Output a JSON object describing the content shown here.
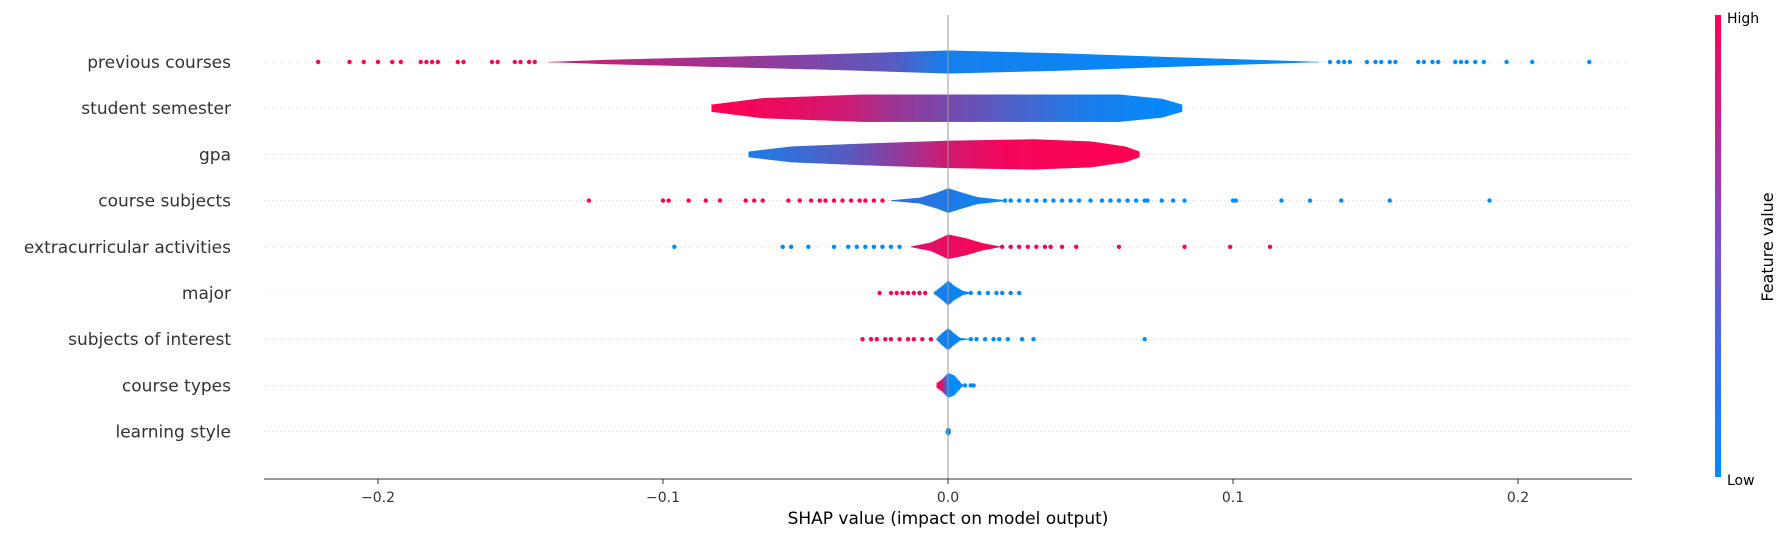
{
  "chart_data": {
    "type": "violin",
    "xlabel": "SHAP value (impact on model output)",
    "xlim": [
      -0.24,
      0.24
    ],
    "xticks": [
      -0.2,
      -0.1,
      0.0,
      0.1,
      0.2
    ],
    "xtick_labels": [
      "−0.2",
      "−0.1",
      "0.0",
      "0.1",
      "0.2"
    ],
    "colorbar": {
      "label": "Feature value",
      "high": "High",
      "low": "Low",
      "high_color": "#ff0052",
      "low_color": "#008bfb"
    },
    "features": [
      {
        "name": "previous courses",
        "range": [
          -0.14,
          0.13
        ],
        "density": [
          [
            -0.14,
            0.002
          ],
          [
            -0.12,
            0.06
          ],
          [
            -0.08,
            0.14
          ],
          [
            -0.04,
            0.22
          ],
          [
            0.0,
            0.32
          ],
          [
            0.04,
            0.24
          ],
          [
            0.08,
            0.13
          ],
          [
            0.12,
            0.03
          ],
          [
            0.13,
            0.002
          ]
        ],
        "color": [
          [
            -0.14,
            0.8
          ],
          [
            -0.07,
            0.6
          ],
          [
            -0.02,
            0.35
          ],
          [
            0.0,
            0.08
          ],
          [
            0.13,
            0.0
          ]
        ],
        "outliers": [
          [
            -0.221,
            1
          ],
          [
            -0.21,
            1
          ],
          [
            -0.205,
            1
          ],
          [
            -0.2,
            1
          ],
          [
            -0.195,
            1
          ],
          [
            -0.192,
            1
          ],
          [
            -0.185,
            1
          ],
          [
            -0.183,
            1
          ],
          [
            -0.181,
            1
          ],
          [
            -0.179,
            1
          ],
          [
            -0.172,
            1
          ],
          [
            -0.17,
            1
          ],
          [
            -0.16,
            1
          ],
          [
            -0.158,
            1
          ],
          [
            -0.152,
            1
          ],
          [
            -0.15,
            1
          ],
          [
            -0.147,
            1
          ],
          [
            -0.145,
            1
          ],
          [
            0.134,
            0
          ],
          [
            0.137,
            0
          ],
          [
            0.139,
            0
          ],
          [
            0.141,
            0
          ],
          [
            0.147,
            0
          ],
          [
            0.15,
            0
          ],
          [
            0.152,
            0
          ],
          [
            0.155,
            0
          ],
          [
            0.157,
            0
          ],
          [
            0.165,
            0
          ],
          [
            0.167,
            0
          ],
          [
            0.17,
            0
          ],
          [
            0.172,
            0
          ],
          [
            0.178,
            0
          ],
          [
            0.18,
            0
          ],
          [
            0.182,
            0
          ],
          [
            0.185,
            0
          ],
          [
            0.188,
            0
          ],
          [
            0.196,
            0
          ],
          [
            0.205,
            0
          ],
          [
            0.225,
            0
          ]
        ]
      },
      {
        "name": "student semester",
        "range": [
          -0.083,
          0.082
        ],
        "density": [
          [
            -0.083,
            0.1
          ],
          [
            -0.065,
            0.28
          ],
          [
            -0.03,
            0.38
          ],
          [
            0.0,
            0.38
          ],
          [
            0.04,
            0.38
          ],
          [
            0.06,
            0.38
          ],
          [
            0.075,
            0.26
          ],
          [
            0.082,
            0.1
          ]
        ],
        "color": [
          [
            -0.083,
            1.0
          ],
          [
            -0.055,
            0.9
          ],
          [
            -0.035,
            0.8
          ],
          [
            -0.02,
            0.62
          ],
          [
            -0.005,
            0.5
          ],
          [
            0.01,
            0.4
          ],
          [
            0.03,
            0.25
          ],
          [
            0.05,
            0.1
          ],
          [
            0.082,
            0.0
          ]
        ],
        "outliers": []
      },
      {
        "name": "gpa",
        "range": [
          -0.07,
          0.067
        ],
        "density": [
          [
            -0.07,
            0.08
          ],
          [
            -0.055,
            0.22
          ],
          [
            -0.03,
            0.3
          ],
          [
            0.0,
            0.38
          ],
          [
            0.03,
            0.42
          ],
          [
            0.05,
            0.36
          ],
          [
            0.062,
            0.22
          ],
          [
            0.067,
            0.08
          ]
        ],
        "color": [
          [
            -0.07,
            0.1
          ],
          [
            -0.055,
            0.2
          ],
          [
            -0.035,
            0.35
          ],
          [
            -0.015,
            0.6
          ],
          [
            0.0,
            0.82
          ],
          [
            0.02,
            0.95
          ],
          [
            0.067,
            1.0
          ]
        ],
        "outliers": []
      },
      {
        "name": "course subjects",
        "range": [
          -0.02,
          0.02
        ],
        "density": [
          [
            -0.02,
            0.01
          ],
          [
            -0.01,
            0.08
          ],
          [
            -0.004,
            0.22
          ],
          [
            0.0,
            0.34
          ],
          [
            0.004,
            0.24
          ],
          [
            0.01,
            0.1
          ],
          [
            0.02,
            0.01
          ]
        ],
        "color": [
          [
            -0.02,
            0.25
          ],
          [
            0.02,
            0.0
          ]
        ],
        "outliers": [
          [
            -0.126,
            1
          ],
          [
            -0.1,
            1
          ],
          [
            -0.098,
            1
          ],
          [
            -0.091,
            1
          ],
          [
            -0.085,
            1
          ],
          [
            -0.08,
            1
          ],
          [
            -0.071,
            1
          ],
          [
            -0.068,
            1
          ],
          [
            -0.065,
            1
          ],
          [
            -0.056,
            1
          ],
          [
            -0.052,
            1
          ],
          [
            -0.048,
            1
          ],
          [
            -0.045,
            1
          ],
          [
            -0.043,
            1
          ],
          [
            -0.04,
            1
          ],
          [
            -0.037,
            1
          ],
          [
            -0.034,
            1
          ],
          [
            -0.031,
            1
          ],
          [
            -0.029,
            1
          ],
          [
            -0.026,
            1
          ],
          [
            -0.023,
            1
          ],
          [
            0.02,
            0
          ],
          [
            0.022,
            0
          ],
          [
            0.025,
            0
          ],
          [
            0.028,
            0
          ],
          [
            0.031,
            0
          ],
          [
            0.034,
            0
          ],
          [
            0.037,
            0
          ],
          [
            0.04,
            0
          ],
          [
            0.043,
            0
          ],
          [
            0.046,
            0
          ],
          [
            0.05,
            0
          ],
          [
            0.054,
            0
          ],
          [
            0.057,
            0
          ],
          [
            0.06,
            0
          ],
          [
            0.063,
            0
          ],
          [
            0.066,
            0
          ],
          [
            0.069,
            0
          ],
          [
            0.07,
            0
          ],
          [
            0.075,
            0
          ],
          [
            0.079,
            0
          ],
          [
            0.083,
            0
          ],
          [
            0.1,
            0
          ],
          [
            0.101,
            0
          ],
          [
            0.117,
            0
          ],
          [
            0.127,
            0
          ],
          [
            0.138,
            0
          ],
          [
            0.155,
            0
          ],
          [
            0.19,
            0
          ]
        ]
      },
      {
        "name": "extracurricular activities",
        "range": [
          -0.013,
          0.018
        ],
        "density": [
          [
            -0.013,
            0.01
          ],
          [
            -0.006,
            0.12
          ],
          [
            0.0,
            0.34
          ],
          [
            0.006,
            0.24
          ],
          [
            0.012,
            0.1
          ],
          [
            0.018,
            0.01
          ]
        ],
        "color": [
          [
            -0.013,
            0.85
          ],
          [
            0.018,
            1.0
          ]
        ],
        "outliers": [
          [
            -0.096,
            0
          ],
          [
            -0.058,
            0
          ],
          [
            -0.055,
            0
          ],
          [
            -0.049,
            0
          ],
          [
            -0.04,
            0
          ],
          [
            -0.035,
            0
          ],
          [
            -0.032,
            0
          ],
          [
            -0.029,
            0
          ],
          [
            -0.026,
            0
          ],
          [
            -0.023,
            0
          ],
          [
            -0.02,
            0
          ],
          [
            -0.017,
            0
          ],
          [
            0.019,
            1
          ],
          [
            0.022,
            1
          ],
          [
            0.025,
            1
          ],
          [
            0.028,
            1
          ],
          [
            0.031,
            1
          ],
          [
            0.034,
            1
          ],
          [
            0.036,
            1
          ],
          [
            0.04,
            1
          ],
          [
            0.045,
            1
          ],
          [
            0.06,
            1
          ],
          [
            0.083,
            1
          ],
          [
            0.099,
            1
          ],
          [
            0.113,
            1
          ]
        ]
      },
      {
        "name": "major",
        "range": [
          -0.005,
          0.008
        ],
        "density": [
          [
            -0.005,
            0.02
          ],
          [
            -0.002,
            0.2
          ],
          [
            0.0,
            0.34
          ],
          [
            0.002,
            0.2
          ],
          [
            0.005,
            0.06
          ],
          [
            0.008,
            0.01
          ]
        ],
        "color": [
          [
            -0.005,
            0.1
          ],
          [
            0.008,
            0.0
          ]
        ],
        "outliers": [
          [
            -0.024,
            1
          ],
          [
            -0.02,
            1
          ],
          [
            -0.018,
            1
          ],
          [
            -0.016,
            1
          ],
          [
            -0.014,
            1
          ],
          [
            -0.012,
            1
          ],
          [
            -0.01,
            1
          ],
          [
            -0.008,
            1
          ],
          [
            0.008,
            0
          ],
          [
            0.011,
            0
          ],
          [
            0.014,
            0
          ],
          [
            0.017,
            0
          ],
          [
            0.019,
            0
          ],
          [
            0.022,
            0
          ],
          [
            0.025,
            0
          ]
        ]
      },
      {
        "name": "subjects of interest",
        "range": [
          -0.004,
          0.007
        ],
        "density": [
          [
            -0.004,
            0.02
          ],
          [
            -0.002,
            0.18
          ],
          [
            0.0,
            0.3
          ],
          [
            0.002,
            0.16
          ],
          [
            0.004,
            0.04
          ],
          [
            0.007,
            0.01
          ]
        ],
        "color": [
          [
            -0.004,
            0.1
          ],
          [
            0.007,
            0.0
          ]
        ],
        "outliers": [
          [
            -0.03,
            1
          ],
          [
            -0.027,
            1
          ],
          [
            -0.025,
            1
          ],
          [
            -0.022,
            1
          ],
          [
            -0.02,
            1
          ],
          [
            -0.017,
            1
          ],
          [
            -0.014,
            1
          ],
          [
            -0.012,
            1
          ],
          [
            -0.009,
            1
          ],
          [
            -0.006,
            1
          ],
          [
            0.008,
            0
          ],
          [
            0.01,
            0
          ],
          [
            0.013,
            0
          ],
          [
            0.016,
            0
          ],
          [
            0.018,
            0
          ],
          [
            0.021,
            0
          ],
          [
            0.026,
            0
          ],
          [
            0.03,
            0
          ],
          [
            0.069,
            0
          ]
        ]
      },
      {
        "name": "course types",
        "range": [
          -0.004,
          0.005
        ],
        "density": [
          [
            -0.004,
            0.06
          ],
          [
            -0.002,
            0.18
          ],
          [
            0.0,
            0.34
          ],
          [
            0.002,
            0.28
          ],
          [
            0.004,
            0.1
          ],
          [
            0.005,
            0.02
          ]
        ],
        "color": [
          [
            -0.004,
            1.0
          ],
          [
            -0.002,
            0.85
          ],
          [
            0.0,
            0.0
          ],
          [
            0.005,
            0.0
          ]
        ],
        "outliers": [
          [
            0.006,
            0
          ],
          [
            0.008,
            0
          ],
          [
            0.009,
            0
          ]
        ]
      },
      {
        "name": "learning style",
        "range": [
          -0.0008,
          0.0008
        ],
        "density": [
          [
            -0.0008,
            0.04
          ],
          [
            0.0,
            0.12
          ],
          [
            0.0008,
            0.04
          ]
        ],
        "color": [
          [
            -0.0008,
            0.1
          ],
          [
            0.0008,
            0.0
          ]
        ],
        "outliers": []
      }
    ]
  }
}
